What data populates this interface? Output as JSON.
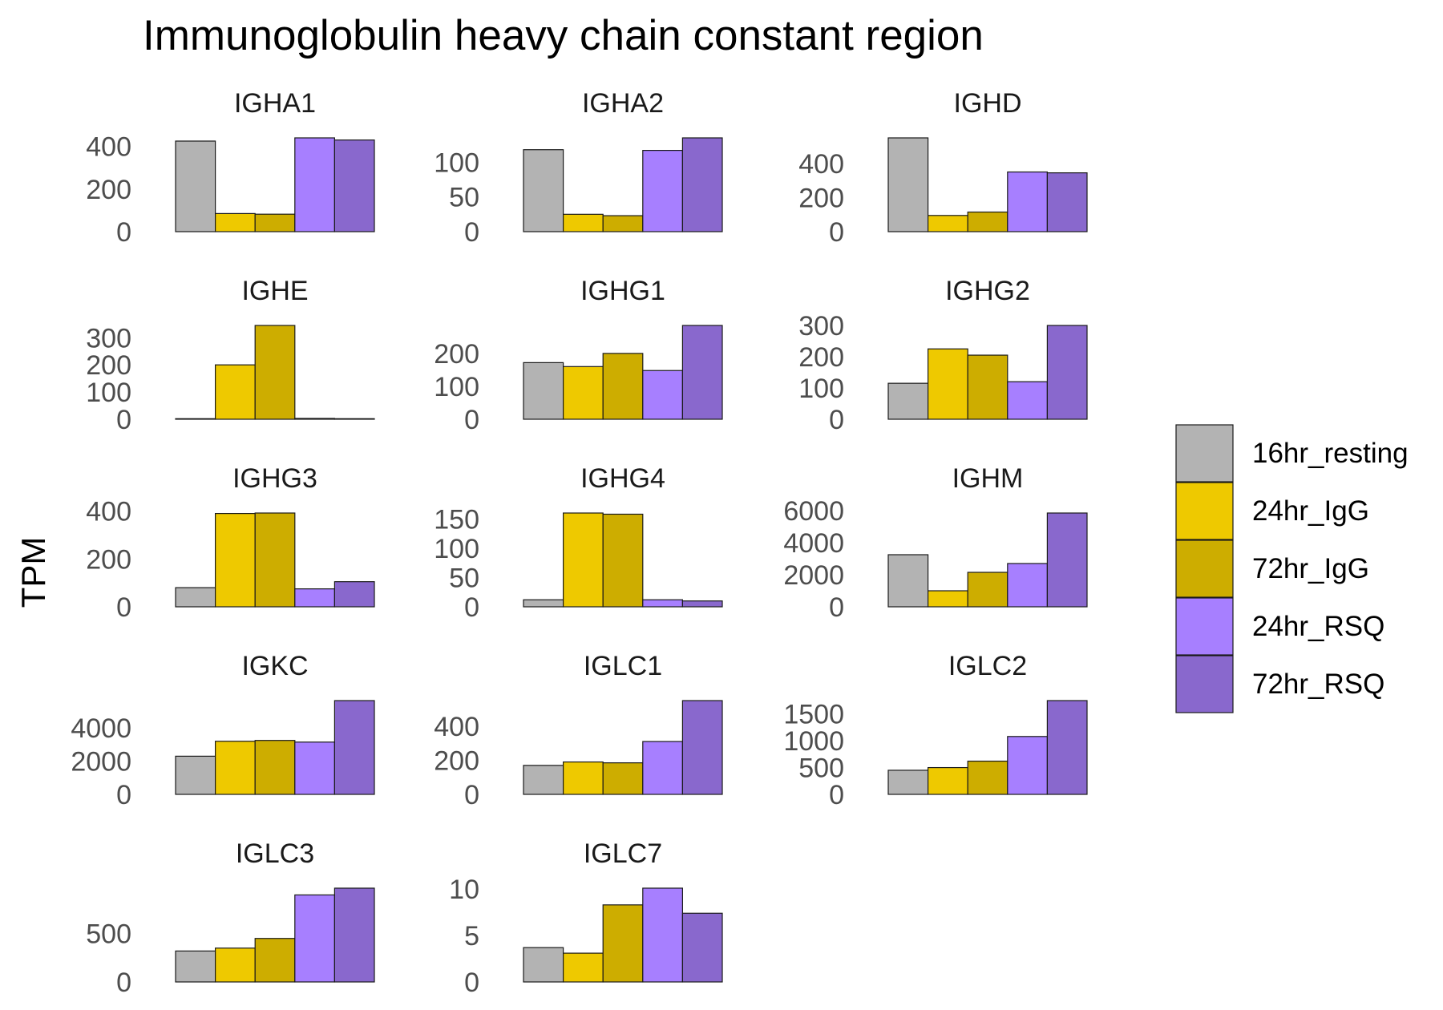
{
  "chart_data": {
    "type": "bar",
    "title": "Immunoglobulin heavy chain constant region",
    "ylabel": "TPM",
    "xlabel": "",
    "grid": false,
    "legend_position": "right",
    "categories": [
      "16hr_resting",
      "24hr_IgG",
      "72hr_IgG",
      "24hr_RSQ",
      "72hr_RSQ"
    ],
    "colors": [
      "#b3b3b3",
      "#eec900",
      "#cdad00",
      "#a77fff",
      "#8968cd"
    ],
    "panels": [
      {
        "name": "IGHA1",
        "values": [
          425,
          85,
          82,
          440,
          430
        ],
        "ylim": [
          0,
          440
        ],
        "yticks": [
          0,
          200,
          400
        ]
      },
      {
        "name": "IGHA2",
        "values": [
          118,
          25,
          23,
          117,
          135
        ],
        "ylim": [
          0,
          135
        ],
        "yticks": [
          0,
          50,
          100
        ]
      },
      {
        "name": "IGHD",
        "values": [
          550,
          95,
          115,
          350,
          345
        ],
        "ylim": [
          0,
          550
        ],
        "yticks": [
          0,
          200,
          400
        ]
      },
      {
        "name": "IGHE",
        "values": [
          2,
          200,
          345,
          3,
          2
        ],
        "ylim": [
          0,
          345
        ],
        "yticks": [
          0,
          100,
          200,
          300
        ]
      },
      {
        "name": "IGHG1",
        "values": [
          172,
          160,
          200,
          148,
          285
        ],
        "ylim": [
          0,
          285
        ],
        "yticks": [
          0,
          100,
          200
        ]
      },
      {
        "name": "IGHG2",
        "values": [
          115,
          225,
          205,
          120,
          300
        ],
        "ylim": [
          0,
          300
        ],
        "yticks": [
          0,
          100,
          200,
          300
        ]
      },
      {
        "name": "IGHG3",
        "values": [
          80,
          390,
          392,
          75,
          105
        ],
        "ylim": [
          0,
          392
        ],
        "yticks": [
          0,
          200,
          400
        ]
      },
      {
        "name": "IGHG4",
        "values": [
          12,
          160,
          158,
          12,
          10
        ],
        "ylim": [
          0,
          160
        ],
        "yticks": [
          0,
          50,
          100,
          150
        ]
      },
      {
        "name": "IGHM",
        "values": [
          3250,
          1000,
          2150,
          2700,
          5850
        ],
        "ylim": [
          0,
          5850
        ],
        "yticks": [
          0,
          2000,
          4000,
          6000
        ]
      },
      {
        "name": "IGKC",
        "values": [
          2300,
          3200,
          3250,
          3150,
          5650
        ],
        "ylim": [
          0,
          5650
        ],
        "yticks": [
          0,
          2000,
          4000
        ]
      },
      {
        "name": "IGLC1",
        "values": [
          170,
          190,
          185,
          310,
          550
        ],
        "ylim": [
          0,
          550
        ],
        "yticks": [
          0,
          200,
          400
        ]
      },
      {
        "name": "IGLC2",
        "values": [
          450,
          500,
          620,
          1080,
          1750
        ],
        "ylim": [
          0,
          1750
        ],
        "yticks": [
          0,
          500,
          1000,
          1500
        ]
      },
      {
        "name": "IGLC3",
        "values": [
          320,
          350,
          450,
          900,
          970
        ],
        "ylim": [
          0,
          970
        ],
        "yticks": [
          0,
          500
        ]
      },
      {
        "name": "IGLC7",
        "values": [
          3.7,
          3.1,
          8.3,
          10.1,
          7.4
        ],
        "ylim": [
          0,
          10.1
        ],
        "yticks": [
          0,
          5,
          10
        ]
      }
    ]
  }
}
